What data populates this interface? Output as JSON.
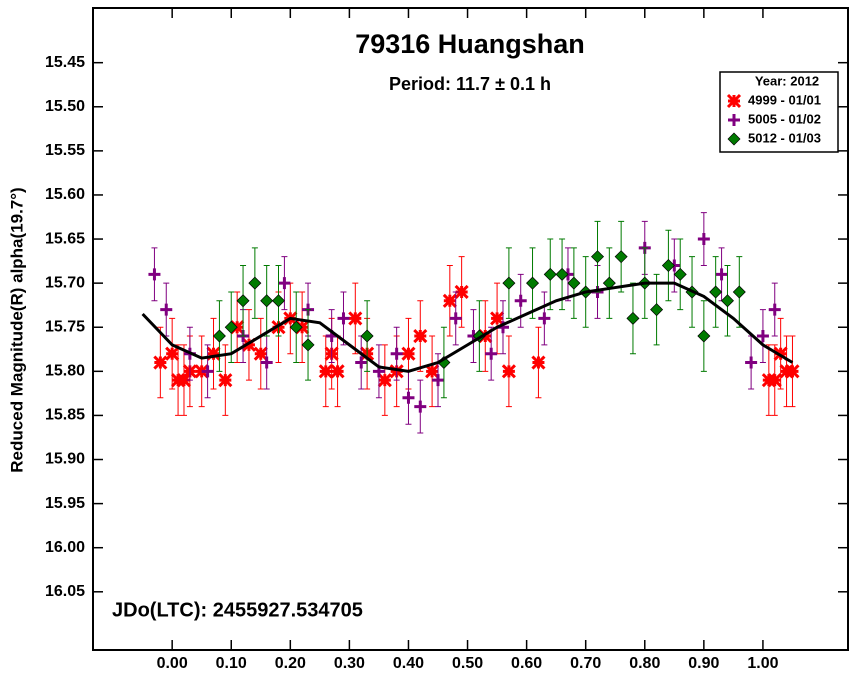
{
  "chart_data": {
    "type": "scatter",
    "title": "79316 Huangshan",
    "subtitle": "Period: 11.7 ± 0.1 h",
    "y_label": "Reduced Magnitude(R) alpha(19.7°)",
    "annotation": "JDo(LTC): 2455927.534705",
    "legend_title": "Year: 2012",
    "legend_position": "upper right",
    "y_inverted": true,
    "xlim": [
      -0.134,
      1.144
    ],
    "ylim": [
      15.388,
      16.116
    ],
    "xticks": [
      {
        "value": 0,
        "label": "0.00"
      },
      {
        "value": 0.1,
        "label": "0.10"
      },
      {
        "value": 0.2,
        "label": "0.20"
      },
      {
        "value": 0.3,
        "label": "0.30"
      },
      {
        "value": 0.4,
        "label": "0.40"
      },
      {
        "value": 0.5,
        "label": "0.50"
      },
      {
        "value": 0.6,
        "label": "0.60"
      },
      {
        "value": 0.7,
        "label": "0.70"
      },
      {
        "value": 0.8,
        "label": "0.80"
      },
      {
        "value": 0.9,
        "label": "0.90"
      },
      {
        "value": 1,
        "label": "1.00"
      }
    ],
    "yticks": [
      15.45,
      {
        "value": 15.5,
        "label": "15.50"
      },
      15.55,
      {
        "value": 15.6,
        "label": "15.60"
      },
      15.65,
      {
        "value": 15.7,
        "label": "15.70"
      },
      15.75,
      {
        "value": 15.8,
        "label": "15.80"
      },
      15.85,
      {
        "value": 15.9,
        "label": "15.90"
      },
      15.95,
      {
        "value": 16,
        "label": "16.00"
      },
      16.05
    ],
    "series": [
      {
        "name": "4999 - 01/01",
        "marker": "asterisk",
        "color": "#ff0000",
        "x": [
          -0.02,
          0.0,
          0.01,
          0.02,
          0.03,
          0.05,
          0.07,
          0.09,
          0.11,
          0.13,
          0.15,
          0.18,
          0.2,
          0.22,
          0.26,
          0.27,
          0.28,
          0.31,
          0.33,
          0.36,
          0.38,
          0.4,
          0.42,
          0.44,
          0.47,
          0.49,
          0.53,
          0.55,
          0.57,
          0.62,
          1.01,
          1.02,
          1.03,
          1.04,
          1.05
        ],
        "values": [
          15.79,
          15.78,
          15.81,
          15.81,
          15.8,
          15.8,
          15.78,
          15.81,
          15.75,
          15.77,
          15.78,
          15.75,
          15.74,
          15.75,
          15.8,
          15.78,
          15.8,
          15.74,
          15.78,
          15.81,
          15.8,
          15.78,
          15.76,
          15.8,
          15.72,
          15.71,
          15.76,
          15.74,
          15.8,
          15.79,
          15.81,
          15.81,
          15.78,
          15.8,
          15.8
        ],
        "errors": [
          0.04,
          0.04,
          0.04,
          0.04,
          0.04,
          0.04,
          0.04,
          0.04,
          0.04,
          0.04,
          0.04,
          0.04,
          0.04,
          0.04,
          0.04,
          0.04,
          0.04,
          0.04,
          0.04,
          0.04,
          0.04,
          0.04,
          0.04,
          0.04,
          0.04,
          0.04,
          0.04,
          0.04,
          0.04,
          0.04,
          0.04,
          0.04,
          0.04,
          0.04,
          0.04
        ]
      },
      {
        "name": "5005 - 01/02",
        "marker": "plus",
        "color": "#800080",
        "x": [
          -0.03,
          -0.01,
          0.03,
          0.06,
          0.12,
          0.16,
          0.19,
          0.23,
          0.27,
          0.29,
          0.32,
          0.35,
          0.38,
          0.4,
          0.42,
          0.45,
          0.48,
          0.51,
          0.54,
          0.56,
          0.59,
          0.63,
          0.67,
          0.72,
          0.8,
          0.85,
          0.9,
          0.93,
          0.98,
          1.0,
          1.02
        ],
        "values": [
          15.69,
          15.73,
          15.78,
          15.8,
          15.76,
          15.79,
          15.7,
          15.73,
          15.76,
          15.74,
          15.79,
          15.8,
          15.78,
          15.83,
          15.84,
          15.81,
          15.74,
          15.76,
          15.78,
          15.75,
          15.72,
          15.74,
          15.69,
          15.71,
          15.66,
          15.68,
          15.65,
          15.69,
          15.79,
          15.76,
          15.73
        ],
        "errors": [
          0.03,
          0.03,
          0.03,
          0.03,
          0.03,
          0.03,
          0.03,
          0.03,
          0.03,
          0.03,
          0.03,
          0.03,
          0.03,
          0.03,
          0.03,
          0.03,
          0.03,
          0.03,
          0.03,
          0.03,
          0.03,
          0.03,
          0.03,
          0.03,
          0.03,
          0.03,
          0.03,
          0.03,
          0.03,
          0.03,
          0.03
        ]
      },
      {
        "name": "5012 - 01/03",
        "marker": "diamond",
        "color": "#007a00",
        "x": [
          0.08,
          0.1,
          0.12,
          0.14,
          0.16,
          0.18,
          0.21,
          0.23,
          0.33,
          0.46,
          0.52,
          0.57,
          0.61,
          0.64,
          0.66,
          0.68,
          0.7,
          0.72,
          0.74,
          0.76,
          0.78,
          0.8,
          0.82,
          0.84,
          0.86,
          0.88,
          0.9,
          0.92,
          0.94,
          0.96
        ],
        "values": [
          15.76,
          15.75,
          15.72,
          15.7,
          15.72,
          15.72,
          15.75,
          15.77,
          15.76,
          15.79,
          15.76,
          15.7,
          15.7,
          15.69,
          15.69,
          15.7,
          15.71,
          15.67,
          15.7,
          15.67,
          15.74,
          15.7,
          15.73,
          15.68,
          15.69,
          15.71,
          15.76,
          15.71,
          15.72,
          15.71
        ],
        "errors": [
          0.04,
          0.04,
          0.04,
          0.04,
          0.04,
          0.04,
          0.04,
          0.04,
          0.04,
          0.04,
          0.04,
          0.04,
          0.04,
          0.04,
          0.04,
          0.04,
          0.04,
          0.04,
          0.04,
          0.04,
          0.04,
          0.04,
          0.04,
          0.04,
          0.04,
          0.04,
          0.04,
          0.04,
          0.04,
          0.04
        ]
      },
      {
        "marker": "line",
        "color": "#000000",
        "x": [
          -0.05,
          0,
          0.05,
          0.1,
          0.15,
          0.2,
          0.25,
          0.3,
          0.35,
          0.4,
          0.45,
          0.5,
          0.55,
          0.6,
          0.65,
          0.7,
          0.75,
          0.8,
          0.85,
          0.9,
          0.95,
          1.0,
          1.05
        ],
        "values": [
          15.735,
          15.77,
          15.785,
          15.78,
          15.76,
          15.74,
          15.745,
          15.77,
          15.795,
          15.8,
          15.79,
          15.77,
          15.75,
          15.735,
          15.72,
          15.71,
          15.705,
          15.7,
          15.7,
          15.715,
          15.74,
          15.77,
          15.79
        ]
      }
    ]
  }
}
